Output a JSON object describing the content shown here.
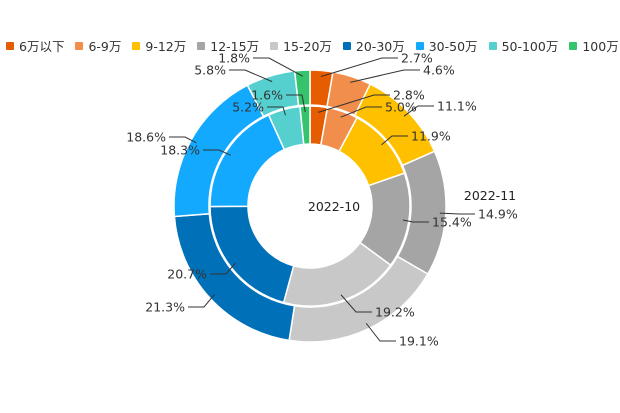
{
  "chart_data": {
    "type": "pie",
    "subtype": "nested-donut",
    "categories": [
      "6万以下",
      "6-9万",
      "9-12万",
      "12-15万",
      "15-20万",
      "20-30万",
      "30-50万",
      "50-100万",
      "100万以上"
    ],
    "colors": [
      "#e65c00",
      "#f28e4c",
      "#ffc000",
      "#a5a5a5",
      "#c8c8c8",
      "#0070b8",
      "#12a9ff",
      "#56d0cf",
      "#33c46c"
    ],
    "series": [
      {
        "name": "2022-10",
        "ring": "inner",
        "values": [
          2.8,
          5.0,
          11.9,
          15.4,
          19.2,
          20.7,
          18.3,
          5.2,
          1.6
        ],
        "labels": [
          "2.8%",
          "5.0%",
          "11.9%",
          "15.4%",
          "19.2%",
          "20.7%",
          "18.3%",
          "5.2%",
          "1.6%"
        ]
      },
      {
        "name": "2022-11",
        "ring": "outer",
        "values": [
          2.7,
          4.6,
          11.1,
          14.9,
          19.1,
          21.3,
          18.6,
          5.8,
          1.8
        ],
        "labels": [
          "2.7%",
          "4.6%",
          "11.1%",
          "14.9%",
          "19.1%",
          "21.3%",
          "18.6%",
          "5.8%",
          "1.8%"
        ]
      }
    ],
    "legend_position": "top",
    "unit": "%"
  }
}
